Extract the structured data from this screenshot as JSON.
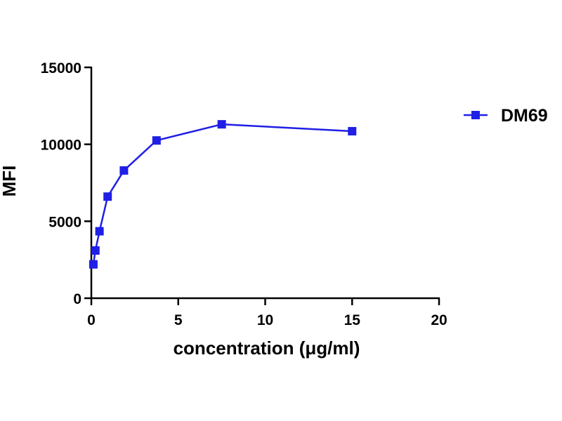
{
  "chart_data": {
    "type": "line",
    "title": "",
    "xlabel": "concentration (μg/ml)",
    "ylabel": "MFI",
    "xlim": [
      0,
      20
    ],
    "ylim": [
      0,
      15000
    ],
    "x_ticks": [
      "0",
      "5",
      "10",
      "15",
      "20"
    ],
    "y_ticks": [
      "0",
      "5000",
      "10000",
      "15000"
    ],
    "grid": false,
    "legend_position": "right",
    "series": [
      {
        "name": "DM69",
        "color": "#1f1fe6",
        "marker": "square",
        "x": [
          0.117,
          0.234,
          0.469,
          0.938,
          1.875,
          3.75,
          7.5,
          15
        ],
        "y": [
          2200,
          3100,
          4350,
          6600,
          8300,
          10250,
          11300,
          10850
        ]
      }
    ]
  }
}
